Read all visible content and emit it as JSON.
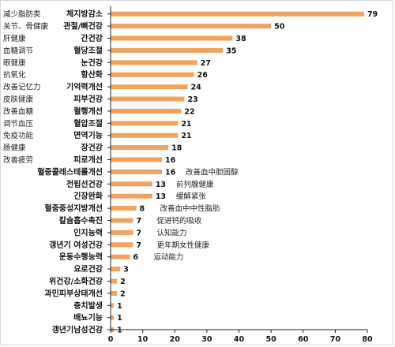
{
  "chart_data": {
    "type": "bar",
    "orientation": "horizontal",
    "categories": [
      "체지방감소",
      "관절/뼈건강",
      "간건강",
      "혈당조절",
      "눈건강",
      "항산화",
      "기억력개선",
      "피부건강",
      "혈행개선",
      "혈압조절",
      "면역기능",
      "장건강",
      "피로개선",
      "혈중콜레스테롤개선",
      "전립선건강",
      "긴장완화",
      "혈중중성지방개선",
      "칼슘흡수촉진",
      "인지능력",
      "갱년기 여성건강",
      "운동수행능력",
      "요로건강",
      "위건강/소화건강",
      "과민피부상태개선",
      "충치발생",
      "배뇨기능",
      "갱년기남성건강"
    ],
    "values": [
      79,
      50,
      38,
      35,
      27,
      26,
      24,
      23,
      22,
      21,
      21,
      18,
      16,
      16,
      13,
      13,
      8,
      7,
      7,
      7,
      6,
      3,
      2,
      2,
      1,
      1,
      1
    ],
    "left_labels": [
      "减少脂肪类",
      "关节、骨健康",
      "肝健康",
      "血糖调节",
      "眼健康",
      "抗氧化",
      "改善记忆力",
      "皮肤健康",
      "改善血糖",
      "调节血压",
      "免疫功能",
      "肠健康",
      "改善疲劳"
    ],
    "right_labels": {
      "13": "改善血中胆固醇",
      "14": "前列腺健康",
      "15": "缓解紧张",
      "16": "改善血中中性脂肪",
      "17": "促进钙的吸收",
      "18": "认知能力",
      "19": "更年期女性健康",
      "20": "运动能力"
    },
    "xlim": [
      0,
      80
    ],
    "xticks": [
      0,
      10,
      20,
      30,
      40,
      50,
      60,
      70,
      80
    ],
    "title": "",
    "xlabel": "",
    "ylabel": "",
    "grid": false,
    "legend": "none"
  },
  "colors": {
    "bar": "#f0a35e",
    "axis": "#222222",
    "text": "#111111"
  }
}
